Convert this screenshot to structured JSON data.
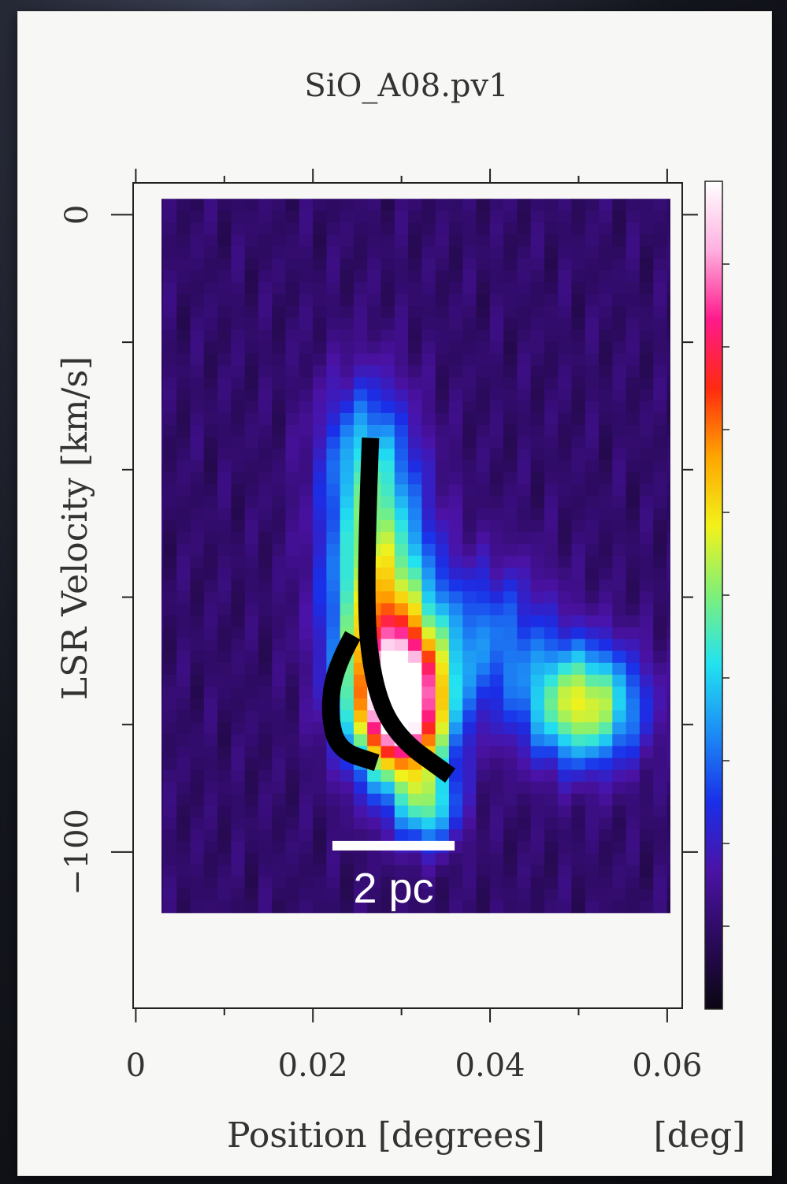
{
  "chart_data": {
    "type": "heatmap",
    "title": "SiO_A08.pv1",
    "xlabel": "Position [degrees]",
    "xunit": "[deg]",
    "ylabel": "LSR Velocity [km/s]",
    "xlim": [
      -0.0003,
      0.0617
    ],
    "ylim": [
      -124.5,
      5
    ],
    "x_ticks": [
      0,
      0.02,
      0.04,
      0.06
    ],
    "x_tick_labels": [
      "0",
      "0.02",
      "0.04",
      "0.06"
    ],
    "y_ticks": [
      0,
      -100
    ],
    "y_tick_labels": [
      "0",
      "−100"
    ],
    "y_minor_ticks": [
      -20,
      -40,
      -60,
      -80
    ],
    "colorscale": [
      "#0a0612",
      "#2a0a5a",
      "#4b12a6",
      "#1a2fe8",
      "#1d8cf5",
      "#22e2f0",
      "#7ef07a",
      "#f2f21a",
      "#ffa600",
      "#ff2a10",
      "#ff1a8c",
      "#ffb0e0",
      "#ffffff"
    ],
    "background_level": 0.1,
    "components": [
      {
        "x": 0.03,
        "y": -77,
        "sx": 0.0036,
        "sy": 8.0,
        "amp": 0.98
      },
      {
        "x": 0.0275,
        "y": -60,
        "sx": 0.004,
        "sy": 12.0,
        "amp": 0.48
      },
      {
        "x": 0.026,
        "y": -38,
        "sx": 0.0036,
        "sy": 9.0,
        "amp": 0.25
      },
      {
        "x": 0.0505,
        "y": -77,
        "sx": 0.0045,
        "sy": 6.5,
        "amp": 0.48
      },
      {
        "x": 0.04,
        "y": -66,
        "sx": 0.005,
        "sy": 8.0,
        "amp": 0.2
      },
      {
        "x": 0.033,
        "y": -93,
        "sx": 0.0025,
        "sy": 4.5,
        "amp": 0.3
      }
    ],
    "overlays": {
      "tracks": [
        {
          "color": "#000000",
          "points": [
            [
              0.0265,
              -35
            ],
            [
              0.0258,
              -60
            ],
            [
              0.0268,
              -74
            ],
            [
              0.0295,
              -82
            ],
            [
              0.0355,
              -88
            ]
          ]
        },
        {
          "color": "#000000",
          "points": [
            [
              0.0245,
              -66
            ],
            [
              0.0225,
              -71
            ],
            [
              0.0218,
              -78
            ],
            [
              0.0228,
              -84
            ],
            [
              0.0272,
              -86
            ]
          ]
        }
      ],
      "scalebar": {
        "x0": 0.0222,
        "x1": 0.036,
        "y": -99,
        "label": "2 pc",
        "color": "#ffffff"
      }
    }
  }
}
